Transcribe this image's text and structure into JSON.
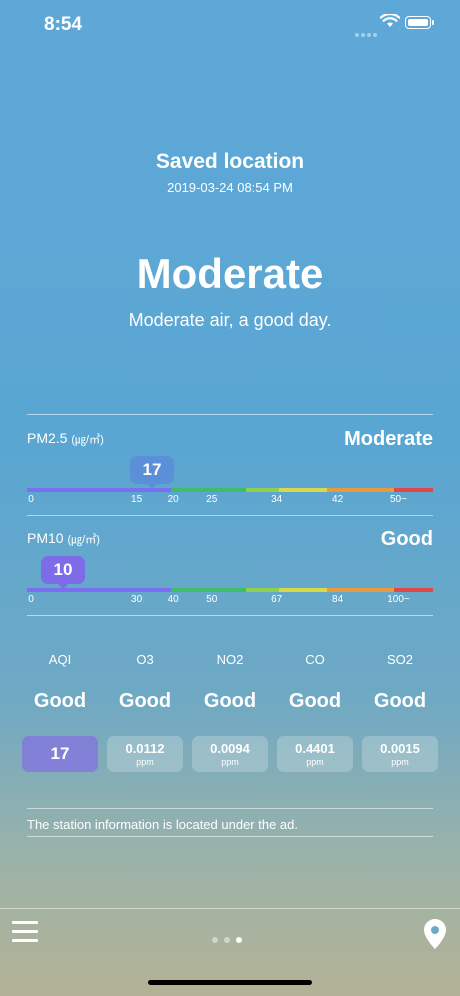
{
  "status_bar": {
    "time": "8:54"
  },
  "header": {
    "location_title": "Saved location",
    "datetime": "2019-03-24 08:54 PM",
    "overall_grade": "Moderate",
    "overall_message": "Moderate air, a good day."
  },
  "pm25": {
    "label": "PM2.5",
    "unit": "(㎍/㎥)",
    "grade": "Moderate",
    "value": "17",
    "value_num": 17,
    "ticks": [
      "0",
      "15",
      "20",
      "25",
      "34",
      "42",
      "50~"
    ]
  },
  "pm10": {
    "label": "PM10",
    "unit": "(㎍/㎥)",
    "grade": "Good",
    "value": "10",
    "value_num": 10,
    "ticks": [
      "0",
      "30",
      "40",
      "50",
      "67",
      "84",
      "100~"
    ]
  },
  "pollutants": [
    {
      "name": "AQI",
      "grade": "Good",
      "value": "17",
      "unit": ""
    },
    {
      "name": "O3",
      "grade": "Good",
      "value": "0.0112",
      "unit": "ppm"
    },
    {
      "name": "NO2",
      "grade": "Good",
      "value": "0.0094",
      "unit": "ppm"
    },
    {
      "name": "CO",
      "grade": "Good",
      "value": "0.4401",
      "unit": "ppm"
    },
    {
      "name": "SO2",
      "grade": "Good",
      "value": "0.0015",
      "unit": "ppm"
    }
  ],
  "station_note": "The station information is located under the ad.",
  "page_indicator": {
    "count": 3,
    "active": 3
  },
  "colors": {
    "scale": [
      "#7a6ff0",
      "#4b86e8",
      "#3fbe6a",
      "#8fd14f",
      "#d8d84a",
      "#e89a3c",
      "#e04848"
    ],
    "bubble_pm25": "#5b8fd8",
    "bubble_pm10": "#7d6be8"
  },
  "icons": {
    "menu": "hamburger-menu-icon",
    "location": "location-pin-icon",
    "wifi": "wifi-icon",
    "battery": "battery-icon"
  }
}
